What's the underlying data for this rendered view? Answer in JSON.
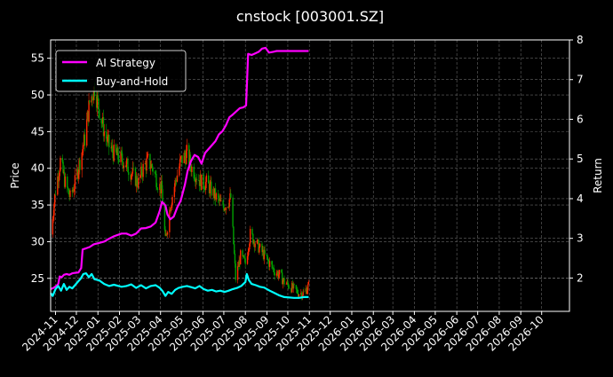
{
  "chart_data": {
    "type": "line",
    "title": "cnstock [003001.SZ]",
    "xlabel": "",
    "ylabel": "Price",
    "y2label": "Return",
    "background": "#000000",
    "grid": true,
    "legend_position": "top-left",
    "x_ticks": [
      "2024-11",
      "2024-12",
      "2025-01",
      "2025-02",
      "2025-03",
      "2025-04",
      "2025-05",
      "2025-06",
      "2025-07",
      "2025-08",
      "2025-09",
      "2025-10",
      "2025-11",
      "2025-12",
      "2026-01",
      "2026-02",
      "2026-03",
      "2026-04",
      "2026-05",
      "2026-06",
      "2026-07",
      "2026-08",
      "2026-09",
      "2026-10"
    ],
    "y_ticks": [
      25,
      30,
      35,
      40,
      45,
      50,
      55
    ],
    "y2_ticks": [
      2,
      3,
      4,
      5,
      6,
      7,
      8
    ],
    "xlim": [
      "2024-10-25",
      "2026-11-10"
    ],
    "ylim": [
      20.5,
      57.5
    ],
    "y2lim": [
      1.16,
      8.0
    ],
    "candlestick": {
      "up_color": "#ff2a00",
      "down_color": "#00a000",
      "close_path": [
        [
          "2024-10-25",
          31
        ],
        [
          "2024-11-01",
          37
        ],
        [
          "2024-11-08",
          41
        ],
        [
          "2024-11-15",
          38
        ],
        [
          "2024-11-22",
          36
        ],
        [
          "2024-11-29",
          38
        ],
        [
          "2024-12-06",
          41
        ],
        [
          "2024-12-13",
          44
        ],
        [
          "2024-12-20",
          49
        ],
        [
          "2024-12-27",
          51
        ],
        [
          "2025-01-03",
          48
        ],
        [
          "2025-01-10",
          45
        ],
        [
          "2025-01-17",
          43
        ],
        [
          "2025-01-24",
          42
        ],
        [
          "2025-02-07",
          41
        ],
        [
          "2025-02-14",
          40
        ],
        [
          "2025-02-21",
          39
        ],
        [
          "2025-02-28",
          38
        ],
        [
          "2025-03-07",
          40
        ],
        [
          "2025-03-14",
          41
        ],
        [
          "2025-03-21",
          40
        ],
        [
          "2025-03-28",
          38
        ],
        [
          "2025-04-03",
          37
        ],
        [
          "2025-04-08",
          30
        ],
        [
          "2025-04-15",
          35
        ],
        [
          "2025-04-22",
          38
        ],
        [
          "2025-04-30",
          41
        ],
        [
          "2025-05-09",
          42
        ],
        [
          "2025-05-16",
          40
        ],
        [
          "2025-05-23",
          39
        ],
        [
          "2025-05-30",
          38
        ],
        [
          "2025-06-06",
          38
        ],
        [
          "2025-06-13",
          37
        ],
        [
          "2025-06-20",
          36
        ],
        [
          "2025-06-27",
          35
        ],
        [
          "2025-07-04",
          35
        ],
        [
          "2025-07-11",
          36
        ],
        [
          "2025-07-18",
          25
        ],
        [
          "2025-07-25",
          28
        ],
        [
          "2025-08-01",
          27
        ],
        [
          "2025-08-08",
          31
        ],
        [
          "2025-08-15",
          30
        ],
        [
          "2025-08-22",
          29
        ],
        [
          "2025-08-29",
          28
        ],
        [
          "2025-09-05",
          27
        ],
        [
          "2025-09-12",
          26
        ],
        [
          "2025-09-19",
          25.5
        ],
        [
          "2025-09-26",
          24.5
        ],
        [
          "2025-10-10",
          23.5
        ],
        [
          "2025-10-17",
          23
        ],
        [
          "2025-10-24",
          23
        ],
        [
          "2025-10-31",
          24
        ]
      ]
    },
    "series": [
      {
        "name": "AI Strategy",
        "axis": "right",
        "color": "#ff00ff",
        "points": [
          [
            "2024-10-25",
            1.72
          ],
          [
            "2024-10-29",
            1.75
          ],
          [
            "2024-11-02",
            1.8
          ],
          [
            "2024-11-05",
            1.85
          ],
          [
            "2024-11-07",
            2.04
          ],
          [
            "2024-11-10",
            2.02
          ],
          [
            "2024-11-13",
            2.08
          ],
          [
            "2024-11-17",
            2.1
          ],
          [
            "2024-11-21",
            2.08
          ],
          [
            "2024-11-25",
            2.12
          ],
          [
            "2024-11-29",
            2.13
          ],
          [
            "2024-12-04",
            2.14
          ],
          [
            "2024-12-08",
            2.25
          ],
          [
            "2024-12-10",
            2.72
          ],
          [
            "2024-12-15",
            2.75
          ],
          [
            "2024-12-20",
            2.78
          ],
          [
            "2024-12-26",
            2.85
          ],
          [
            "2025-01-02",
            2.88
          ],
          [
            "2025-01-10",
            2.92
          ],
          [
            "2025-01-17",
            2.99
          ],
          [
            "2025-01-24",
            3.05
          ],
          [
            "2025-02-04",
            3.12
          ],
          [
            "2025-02-11",
            3.12
          ],
          [
            "2025-02-18",
            3.07
          ],
          [
            "2025-02-25",
            3.12
          ],
          [
            "2025-03-04",
            3.25
          ],
          [
            "2025-03-11",
            3.26
          ],
          [
            "2025-03-18",
            3.3
          ],
          [
            "2025-03-25",
            3.4
          ],
          [
            "2025-03-31",
            3.7
          ],
          [
            "2025-04-03",
            3.92
          ],
          [
            "2025-04-08",
            3.83
          ],
          [
            "2025-04-11",
            3.6
          ],
          [
            "2025-04-15",
            3.48
          ],
          [
            "2025-04-20",
            3.55
          ],
          [
            "2025-04-25",
            3.78
          ],
          [
            "2025-04-30",
            3.95
          ],
          [
            "2025-05-06",
            4.35
          ],
          [
            "2025-05-10",
            4.7
          ],
          [
            "2025-05-15",
            4.95
          ],
          [
            "2025-05-20",
            5.1
          ],
          [
            "2025-05-25",
            5.05
          ],
          [
            "2025-05-30",
            4.88
          ],
          [
            "2025-06-04",
            5.15
          ],
          [
            "2025-06-09",
            5.25
          ],
          [
            "2025-06-14",
            5.35
          ],
          [
            "2025-06-19",
            5.45
          ],
          [
            "2025-06-24",
            5.62
          ],
          [
            "2025-06-29",
            5.7
          ],
          [
            "2025-07-04",
            5.85
          ],
          [
            "2025-07-09",
            6.05
          ],
          [
            "2025-07-14",
            6.12
          ],
          [
            "2025-07-19",
            6.2
          ],
          [
            "2025-07-24",
            6.28
          ],
          [
            "2025-07-29",
            6.3
          ],
          [
            "2025-08-02",
            6.35
          ],
          [
            "2025-08-05",
            7.65
          ],
          [
            "2025-08-10",
            7.62
          ],
          [
            "2025-08-15",
            7.66
          ],
          [
            "2025-08-20",
            7.7
          ],
          [
            "2025-08-25",
            7.78
          ],
          [
            "2025-08-30",
            7.8
          ],
          [
            "2025-09-04",
            7.68
          ],
          [
            "2025-09-10",
            7.7
          ],
          [
            "2025-09-15",
            7.72
          ],
          [
            "2025-09-25",
            7.72
          ],
          [
            "2025-10-05",
            7.72
          ],
          [
            "2025-10-15",
            7.72
          ],
          [
            "2025-10-22",
            7.72
          ],
          [
            "2025-10-31",
            7.72
          ]
        ]
      },
      {
        "name": "Buy-and-Hold",
        "axis": "right",
        "color": "#00ffff",
        "points": [
          [
            "2024-10-25",
            1.62
          ],
          [
            "2024-10-28",
            1.55
          ],
          [
            "2024-11-01",
            1.72
          ],
          [
            "2024-11-05",
            1.8
          ],
          [
            "2024-11-09",
            1.68
          ],
          [
            "2024-11-13",
            1.85
          ],
          [
            "2024-11-17",
            1.7
          ],
          [
            "2024-11-21",
            1.78
          ],
          [
            "2024-11-25",
            1.74
          ],
          [
            "2024-11-29",
            1.82
          ],
          [
            "2024-12-03",
            1.9
          ],
          [
            "2024-12-07",
            1.98
          ],
          [
            "2024-12-11",
            2.1
          ],
          [
            "2024-12-15",
            2.12
          ],
          [
            "2024-12-19",
            2.02
          ],
          [
            "2024-12-23",
            2.1
          ],
          [
            "2024-12-27",
            1.97
          ],
          [
            "2025-01-03",
            1.94
          ],
          [
            "2025-01-10",
            1.85
          ],
          [
            "2025-01-17",
            1.8
          ],
          [
            "2025-01-24",
            1.83
          ],
          [
            "2025-02-04",
            1.78
          ],
          [
            "2025-02-11",
            1.8
          ],
          [
            "2025-02-18",
            1.84
          ],
          [
            "2025-02-25",
            1.75
          ],
          [
            "2025-03-04",
            1.82
          ],
          [
            "2025-03-11",
            1.74
          ],
          [
            "2025-03-18",
            1.8
          ],
          [
            "2025-03-25",
            1.82
          ],
          [
            "2025-03-31",
            1.75
          ],
          [
            "2025-04-04",
            1.67
          ],
          [
            "2025-04-08",
            1.55
          ],
          [
            "2025-04-12",
            1.65
          ],
          [
            "2025-04-17",
            1.6
          ],
          [
            "2025-04-22",
            1.7
          ],
          [
            "2025-04-27",
            1.75
          ],
          [
            "2025-05-03",
            1.78
          ],
          [
            "2025-05-09",
            1.8
          ],
          [
            "2025-05-15",
            1.77
          ],
          [
            "2025-05-21",
            1.74
          ],
          [
            "2025-05-27",
            1.8
          ],
          [
            "2025-06-02",
            1.72
          ],
          [
            "2025-06-08",
            1.68
          ],
          [
            "2025-06-14",
            1.7
          ],
          [
            "2025-06-20",
            1.66
          ],
          [
            "2025-06-26",
            1.68
          ],
          [
            "2025-07-02",
            1.65
          ],
          [
            "2025-07-08",
            1.68
          ],
          [
            "2025-07-14",
            1.72
          ],
          [
            "2025-07-20",
            1.75
          ],
          [
            "2025-07-26",
            1.8
          ],
          [
            "2025-08-01",
            1.9
          ],
          [
            "2025-08-03",
            2.1
          ],
          [
            "2025-08-06",
            1.95
          ],
          [
            "2025-08-10",
            1.85
          ],
          [
            "2025-08-16",
            1.82
          ],
          [
            "2025-08-22",
            1.78
          ],
          [
            "2025-08-28",
            1.76
          ],
          [
            "2025-09-05",
            1.68
          ],
          [
            "2025-09-12",
            1.62
          ],
          [
            "2025-09-19",
            1.56
          ],
          [
            "2025-09-26",
            1.52
          ],
          [
            "2025-10-10",
            1.5
          ],
          [
            "2025-10-17",
            1.5
          ],
          [
            "2025-10-24",
            1.52
          ],
          [
            "2025-10-31",
            1.52
          ]
        ]
      }
    ]
  }
}
